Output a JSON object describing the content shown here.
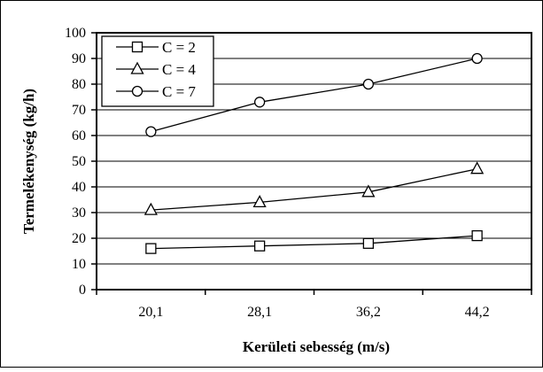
{
  "chart_data": {
    "type": "line",
    "categories": [
      "20,1",
      "28,1",
      "36,2",
      "44,2"
    ],
    "series": [
      {
        "name": "C = 2",
        "marker": "square",
        "values": [
          16,
          17,
          18,
          21
        ]
      },
      {
        "name": "C = 4",
        "marker": "triangle",
        "values": [
          31,
          34,
          38,
          47
        ]
      },
      {
        "name": "C = 7",
        "marker": "circle",
        "values": [
          61.5,
          73,
          80,
          90
        ]
      }
    ],
    "title": "",
    "xlabel": "Kerületi sebesség (m/s)",
    "ylabel": "Termelékenység (kg/h)",
    "ylim": [
      0,
      100
    ],
    "yticks": [
      0,
      10,
      20,
      30,
      40,
      50,
      60,
      70,
      80,
      90,
      100
    ],
    "grid": "horizontal",
    "legend_position": "top-left",
    "line_color": "#000000",
    "marker_fill": "#ffffff",
    "background": "#ffffff"
  }
}
